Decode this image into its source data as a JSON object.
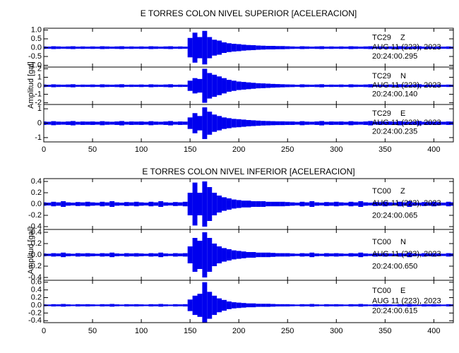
{
  "chart_data": [
    {
      "type": "seismogram",
      "title": "E TORRES COLON NIVEL SUPERIOR [ACELERACION]",
      "ylabel": "Amplitud [gal]",
      "xlim": [
        0,
        420
      ],
      "xticks": [
        0,
        50,
        100,
        150,
        200,
        250,
        300,
        350,
        400
      ],
      "x": [
        0,
        5,
        10,
        15,
        20,
        25,
        30,
        35,
        40,
        45,
        50,
        55,
        60,
        65,
        70,
        75,
        80,
        85,
        90,
        95,
        100,
        105,
        110,
        115,
        120,
        125,
        130,
        135,
        140,
        145,
        150,
        155,
        160,
        165,
        170,
        175,
        180,
        185,
        190,
        195,
        200,
        205,
        210,
        215,
        220,
        225,
        230,
        235,
        240,
        245,
        250,
        255,
        260,
        265,
        270,
        275,
        280,
        285,
        290,
        295,
        300,
        305,
        310,
        315,
        320,
        325,
        330,
        335,
        340,
        345,
        350,
        355,
        360,
        365,
        370,
        375,
        380,
        385,
        390,
        395,
        400,
        405,
        410,
        415,
        420
      ],
      "traces": [
        {
          "station": "TC29",
          "component": "Z",
          "date": "AUG 11 (223), 2023",
          "time": "20:24:00.295",
          "color": "#0000ee",
          "ylim": [
            -1.1,
            1.1
          ],
          "yticks": [
            {
              "value": 1.0,
              "label": "1.0"
            },
            0.5,
            {
              "value": 0.0,
              "label": "0.0"
            },
            -0.5,
            {
              "value": -1.0,
              "label": "-1.0"
            }
          ],
          "values": [
            0.07,
            0.06,
            0.08,
            0.07,
            0.06,
            0.07,
            0.08,
            0.06,
            0.07,
            0.06,
            0.07,
            0.06,
            0.08,
            0.07,
            0.06,
            0.07,
            0.08,
            0.06,
            0.07,
            0.06,
            0.07,
            0.06,
            0.08,
            0.07,
            0.06,
            0.07,
            0.08,
            0.06,
            0.07,
            0.06,
            0.55,
            0.85,
            0.6,
            0.95,
            0.6,
            0.45,
            0.4,
            0.3,
            0.25,
            0.22,
            0.2,
            0.17,
            0.15,
            0.14,
            0.12,
            0.11,
            0.1,
            0.1,
            0.09,
            0.09,
            0.08,
            0.07,
            0.06,
            0.08,
            0.07,
            0.06,
            0.07,
            0.08,
            0.06,
            0.07,
            0.06,
            0.07,
            0.06,
            0.08,
            0.07,
            0.06,
            0.07,
            0.08,
            0.06,
            0.07,
            0.06,
            0.07,
            0.06,
            0.08,
            0.07,
            0.06,
            0.07,
            0.08,
            0.06,
            0.07,
            0.06,
            0.07,
            0.06,
            0.07,
            0.06
          ]
        },
        {
          "station": "TC29",
          "component": "N",
          "date": "AUG 11 (223), 2023",
          "time": "20:24:00.140",
          "color": "#0000ee",
          "ylim": [
            -2.2,
            2.2
          ],
          "yticks": [
            2,
            1,
            0,
            -1,
            -2
          ],
          "values": [
            0.15,
            0.12,
            0.17,
            0.14,
            0.13,
            0.15,
            0.18,
            0.12,
            0.14,
            0.13,
            0.15,
            0.12,
            0.17,
            0.14,
            0.13,
            0.15,
            0.18,
            0.12,
            0.14,
            0.13,
            0.15,
            0.12,
            0.17,
            0.14,
            0.13,
            0.15,
            0.18,
            0.12,
            0.14,
            0.13,
            0.6,
            0.9,
            0.8,
            2.0,
            1.5,
            1.3,
            1.1,
            0.9,
            0.7,
            0.6,
            0.5,
            0.45,
            0.4,
            0.35,
            0.3,
            0.28,
            0.25,
            0.22,
            0.2,
            0.18,
            0.16,
            0.15,
            0.12,
            0.17,
            0.14,
            0.13,
            0.15,
            0.18,
            0.12,
            0.14,
            0.13,
            0.15,
            0.12,
            0.17,
            0.14,
            0.13,
            0.15,
            0.18,
            0.12,
            0.14,
            0.13,
            0.15,
            0.12,
            0.17,
            0.14,
            0.13,
            0.15,
            0.18,
            0.12,
            0.14,
            0.13,
            0.15,
            0.12,
            0.14,
            0.13
          ]
        },
        {
          "station": "TC29",
          "component": "E",
          "date": "AUG 11 (223), 2023",
          "time": "20:24:00.235",
          "color": "#0000ee",
          "ylim": [
            -1.3,
            1.3
          ],
          "yticks": [
            1,
            0,
            -1
          ],
          "values": [
            0.12,
            0.1,
            0.14,
            0.11,
            0.1,
            0.12,
            0.15,
            0.1,
            0.12,
            0.11,
            0.12,
            0.1,
            0.14,
            0.11,
            0.1,
            0.12,
            0.15,
            0.1,
            0.12,
            0.11,
            0.12,
            0.1,
            0.14,
            0.11,
            0.1,
            0.12,
            0.15,
            0.1,
            0.12,
            0.11,
            0.4,
            0.7,
            0.5,
            1.1,
            0.8,
            0.6,
            0.5,
            0.4,
            0.35,
            0.3,
            0.28,
            0.25,
            0.22,
            0.2,
            0.18,
            0.16,
            0.15,
            0.14,
            0.13,
            0.13,
            0.12,
            0.12,
            0.1,
            0.14,
            0.11,
            0.1,
            0.12,
            0.15,
            0.1,
            0.12,
            0.11,
            0.12,
            0.1,
            0.14,
            0.11,
            0.1,
            0.12,
            0.15,
            0.1,
            0.12,
            0.11,
            0.12,
            0.1,
            0.14,
            0.11,
            0.1,
            0.12,
            0.15,
            0.1,
            0.12,
            0.11,
            0.12,
            0.1,
            0.12,
            0.11
          ]
        }
      ]
    },
    {
      "type": "seismogram",
      "title": "E TORRES COLON NIVEL INFERIOR [ACELERACION]",
      "ylabel": "Amplitud [gal]",
      "xlim": [
        0,
        420
      ],
      "xticks": [
        0,
        50,
        100,
        150,
        200,
        250,
        300,
        350,
        400
      ],
      "x": [
        0,
        5,
        10,
        15,
        20,
        25,
        30,
        35,
        40,
        45,
        50,
        55,
        60,
        65,
        70,
        75,
        80,
        85,
        90,
        95,
        100,
        105,
        110,
        115,
        120,
        125,
        130,
        135,
        140,
        145,
        150,
        155,
        160,
        165,
        170,
        175,
        180,
        185,
        190,
        195,
        200,
        205,
        210,
        215,
        220,
        225,
        230,
        235,
        240,
        245,
        250,
        255,
        260,
        265,
        270,
        275,
        280,
        285,
        290,
        295,
        300,
        305,
        310,
        315,
        320,
        325,
        330,
        335,
        340,
        345,
        350,
        355,
        360,
        365,
        370,
        375,
        380,
        385,
        390,
        395,
        400,
        405,
        410,
        415,
        420
      ],
      "traces": [
        {
          "station": "TC00",
          "component": "Z",
          "date": "AUG 11 (223), 2023",
          "time": "20:24:00.065",
          "color": "#0000ee",
          "ylim": [
            -0.45,
            0.45
          ],
          "yticks": [
            0.4,
            0.2,
            {
              "value": 0.0,
              "label": "0.0"
            },
            -0.2,
            -0.4
          ],
          "values": [
            0.03,
            0.025,
            0.04,
            0.03,
            0.05,
            0.03,
            0.025,
            0.035,
            0.03,
            0.04,
            0.03,
            0.025,
            0.04,
            0.03,
            0.05,
            0.03,
            0.025,
            0.035,
            0.03,
            0.04,
            0.03,
            0.025,
            0.04,
            0.03,
            0.05,
            0.03,
            0.025,
            0.035,
            0.03,
            0.04,
            0.2,
            0.38,
            0.2,
            0.4,
            0.3,
            0.2,
            0.15,
            0.12,
            0.1,
            0.08,
            0.07,
            0.06,
            0.06,
            0.05,
            0.05,
            0.05,
            0.04,
            0.04,
            0.04,
            0.04,
            0.035,
            0.03,
            0.025,
            0.04,
            0.03,
            0.05,
            0.03,
            0.025,
            0.035,
            0.03,
            0.04,
            0.03,
            0.025,
            0.04,
            0.03,
            0.05,
            0.03,
            0.025,
            0.035,
            0.03,
            0.04,
            0.03,
            0.025,
            0.04,
            0.03,
            0.05,
            0.03,
            0.025,
            0.035,
            0.03,
            0.04,
            0.03,
            0.025,
            0.04,
            0.03
          ]
        },
        {
          "station": "TC00",
          "component": "N",
          "date": "AUG 11 (223), 2023",
          "time": "20:24:00.650",
          "color": "#0000ee",
          "ylim": [
            -0.45,
            0.45
          ],
          "yticks": [
            0.4,
            0.2,
            {
              "value": 0.0,
              "label": "0.0"
            },
            -0.2,
            -0.4
          ],
          "values": [
            0.025,
            0.02,
            0.03,
            0.025,
            0.04,
            0.025,
            0.02,
            0.03,
            0.025,
            0.03,
            0.025,
            0.02,
            0.03,
            0.025,
            0.04,
            0.025,
            0.02,
            0.03,
            0.025,
            0.03,
            0.025,
            0.02,
            0.03,
            0.025,
            0.04,
            0.025,
            0.02,
            0.03,
            0.025,
            0.03,
            0.15,
            0.3,
            0.25,
            0.4,
            0.3,
            0.2,
            0.15,
            0.12,
            0.1,
            0.08,
            0.07,
            0.06,
            0.05,
            0.05,
            0.04,
            0.04,
            0.04,
            0.035,
            0.03,
            0.03,
            0.03,
            0.025,
            0.02,
            0.03,
            0.025,
            0.04,
            0.025,
            0.02,
            0.03,
            0.025,
            0.03,
            0.025,
            0.02,
            0.03,
            0.025,
            0.04,
            0.025,
            0.02,
            0.03,
            0.025,
            0.03,
            0.025,
            0.02,
            0.03,
            0.025,
            0.04,
            0.025,
            0.02,
            0.03,
            0.025,
            0.03,
            0.025,
            0.02,
            0.03,
            0.025
          ]
        },
        {
          "station": "TC00",
          "component": "E",
          "date": "AUG 11 (223), 2023",
          "time": "20:24:00.615",
          "color": "#0000ee",
          "ylim": [
            -0.45,
            0.65
          ],
          "yticks": [
            0.6,
            0.4,
            0.2,
            {
              "value": 0.0,
              "label": "0.0"
            },
            -0.2,
            -0.4
          ],
          "values": [
            0.025,
            0.02,
            0.03,
            0.025,
            0.035,
            0.025,
            0.02,
            0.03,
            0.025,
            0.03,
            0.025,
            0.02,
            0.03,
            0.025,
            0.035,
            0.025,
            0.02,
            0.03,
            0.025,
            0.03,
            0.025,
            0.02,
            0.03,
            0.025,
            0.035,
            0.025,
            0.02,
            0.03,
            0.025,
            0.03,
            0.15,
            0.25,
            0.3,
            0.6,
            0.35,
            0.25,
            0.18,
            0.14,
            0.1,
            0.08,
            0.07,
            0.06,
            0.05,
            0.05,
            0.04,
            0.04,
            0.04,
            0.035,
            0.03,
            0.03,
            0.03,
            0.025,
            0.02,
            0.03,
            0.025,
            0.035,
            0.025,
            0.02,
            0.03,
            0.025,
            0.03,
            0.025,
            0.02,
            0.03,
            0.025,
            0.035,
            0.025,
            0.02,
            0.03,
            0.025,
            0.03,
            0.025,
            0.02,
            0.03,
            0.025,
            0.035,
            0.025,
            0.02,
            0.03,
            0.025,
            0.03,
            0.025,
            0.02,
            0.03,
            0.025
          ]
        }
      ]
    }
  ]
}
